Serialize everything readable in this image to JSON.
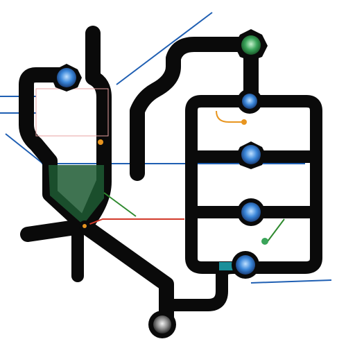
{
  "diagram": {
    "kind": "transit-network",
    "background": "#ffffff",
    "colors": {
      "track": "#0a0a0a",
      "blue_line": "#1f5fb3",
      "green_line": "#2f8a2f",
      "red_line": "#d23a2a",
      "orange_accent": "#e8951f",
      "teal_accent": "#1a8f9a",
      "green_band": "#1d5a33",
      "node_blue": "#3a86d9",
      "node_green": "#3aa45a",
      "node_gray": "#8a8a8a"
    },
    "stations": [
      {
        "id": "station-top-right",
        "color": "green"
      },
      {
        "id": "station-left-upper",
        "color": "blue"
      },
      {
        "id": "station-right-1",
        "color": "blue"
      },
      {
        "id": "station-right-2",
        "color": "blue"
      },
      {
        "id": "station-right-3",
        "color": "blue"
      },
      {
        "id": "station-right-4",
        "color": "blue"
      },
      {
        "id": "station-bottom",
        "color": "gray"
      }
    ],
    "note": ""
  }
}
